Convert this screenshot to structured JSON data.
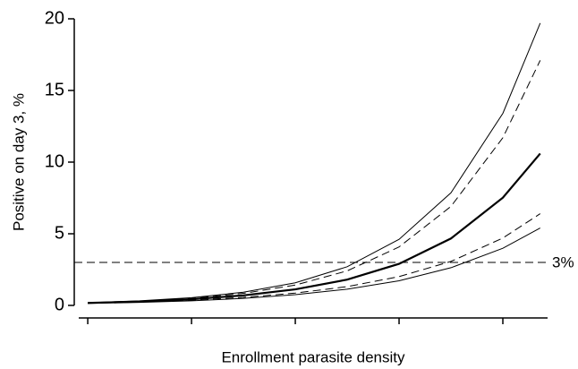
{
  "chart_data": {
    "type": "line",
    "xlabel": "Enrollment parasite density",
    "ylabel": "Positive on day 3, %",
    "x": [
      0,
      0.5,
      1,
      1.5,
      2,
      2.5,
      3,
      3.5,
      4,
      4.36
    ],
    "xlim": [
      -0.13,
      4.5
    ],
    "xticks": [
      0,
      1,
      2,
      3,
      4
    ],
    "xtick_labels": false,
    "ylim": [
      0,
      20
    ],
    "yticks": [
      0,
      5,
      10,
      15,
      20
    ],
    "series": [
      {
        "color": "#000000",
        "dash": "solid",
        "width": 1,
        "values": [
          0.19,
          0.32,
          0.54,
          0.92,
          1.58,
          2.7,
          4.61,
          7.86,
          13.4,
          19.7
        ]
      },
      {
        "color": "#000000",
        "dash": "dashed",
        "width": 1,
        "values": [
          0.17,
          0.29,
          0.49,
          0.84,
          1.42,
          2.41,
          4.08,
          6.91,
          11.7,
          17.1
        ]
      },
      {
        "color": "#000000",
        "dash": "solid",
        "width": 2.2,
        "values": [
          0.17,
          0.27,
          0.43,
          0.7,
          1.12,
          1.8,
          2.9,
          4.67,
          7.52,
          10.6
        ]
      },
      {
        "color": "#000000",
        "dash": "dashed",
        "width": 1,
        "values": [
          0.16,
          0.24,
          0.37,
          0.56,
          0.86,
          1.31,
          2.01,
          3.07,
          4.7,
          6.4
        ]
      },
      {
        "color": "#000000",
        "dash": "solid",
        "width": 1,
        "values": [
          0.14,
          0.21,
          0.32,
          0.49,
          0.75,
          1.13,
          1.72,
          2.63,
          3.99,
          5.4
        ]
      }
    ],
    "hline": {
      "value": 3,
      "label": "3%",
      "dash": "dashed"
    }
  }
}
